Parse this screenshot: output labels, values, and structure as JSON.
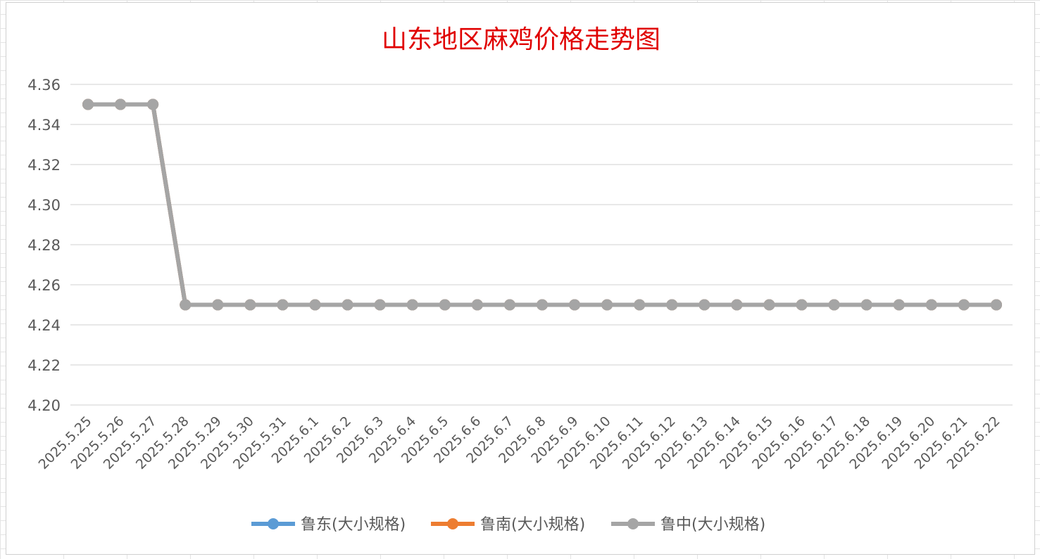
{
  "chart_data": {
    "type": "line",
    "title": "山东地区麻鸡价格走势图",
    "xlabel": "",
    "ylabel": "",
    "ylim": [
      4.2,
      4.36
    ],
    "yticks": [
      "4.36",
      "4.34",
      "4.32",
      "4.30",
      "4.28",
      "4.26",
      "4.24",
      "4.22",
      "4.20"
    ],
    "categories": [
      "2025.5.25",
      "2025.5.26",
      "2025.5.27",
      "2025.5.28",
      "2025.5.29",
      "2025.5.30",
      "2025.5.31",
      "2025.6.1",
      "2025.6.2",
      "2025.6.3",
      "2025.6.4",
      "2025.6.5",
      "2025.6.6",
      "2025.6.7",
      "2025.6.8",
      "2025.6.9",
      "2025.6.10",
      "2025.6.11",
      "2025.6.12",
      "2025.6.13",
      "2025.6.14",
      "2025.6.15",
      "2025.6.16",
      "2025.6.17",
      "2025.6.18",
      "2025.6.19",
      "2025.6.20",
      "2025.6.21",
      "2025.6.22"
    ],
    "series": [
      {
        "name": "鲁东(大小规格)",
        "color": "#5b9bd5",
        "values": [
          4.35,
          4.35,
          4.35,
          4.25,
          4.25,
          4.25,
          4.25,
          4.25,
          4.25,
          4.25,
          4.25,
          4.25,
          4.25,
          4.25,
          4.25,
          4.25,
          4.25,
          4.25,
          4.25,
          4.25,
          4.25,
          4.25,
          4.25,
          4.25,
          4.25,
          4.25,
          4.25,
          4.25,
          4.25
        ]
      },
      {
        "name": "鲁南(大小规格)",
        "color": "#ed7d31",
        "values": [
          4.35,
          4.35,
          4.35,
          4.25,
          4.25,
          4.25,
          4.25,
          4.25,
          4.25,
          4.25,
          4.25,
          4.25,
          4.25,
          4.25,
          4.25,
          4.25,
          4.25,
          4.25,
          4.25,
          4.25,
          4.25,
          4.25,
          4.25,
          4.25,
          4.25,
          4.25,
          4.25,
          4.25,
          4.25
        ]
      },
      {
        "name": "鲁中(大小规格)",
        "color": "#a5a5a5",
        "values": [
          4.35,
          4.35,
          4.35,
          4.25,
          4.25,
          4.25,
          4.25,
          4.25,
          4.25,
          4.25,
          4.25,
          4.25,
          4.25,
          4.25,
          4.25,
          4.25,
          4.25,
          4.25,
          4.25,
          4.25,
          4.25,
          4.25,
          4.25,
          4.25,
          4.25,
          4.25,
          4.25,
          4.25,
          4.25
        ]
      }
    ],
    "grid": true,
    "legend_position": "bottom"
  }
}
